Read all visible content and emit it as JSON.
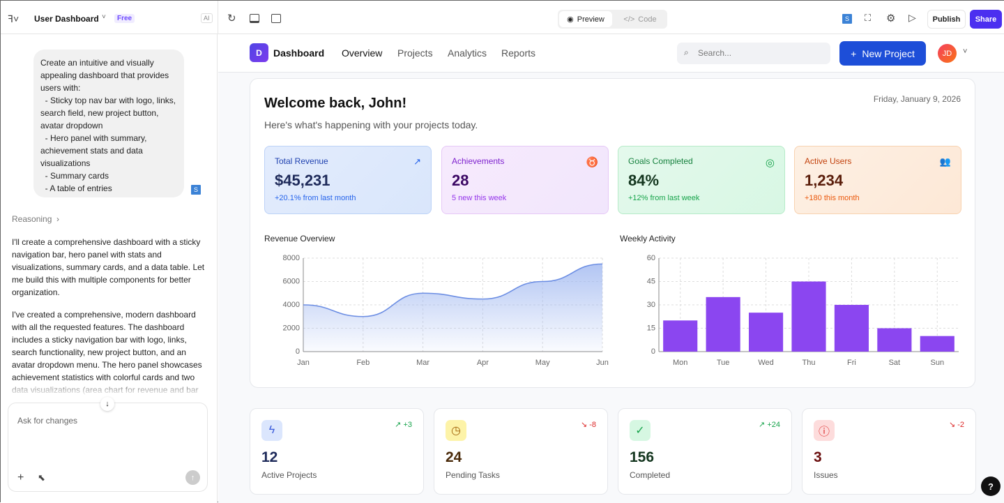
{
  "topbar": {
    "project_name": "User Dashboard",
    "plan_badge": "Free",
    "ai_badge": "AI",
    "preview_tab": "Preview",
    "code_tab": "Code",
    "user_badge": "S",
    "publish": "Publish",
    "share": "Share"
  },
  "chat": {
    "user_message": "Create an intuitive and visually appealing dashboard that provides users with:\n  - Sticky top nav bar with logo, links, search field, new project button, avatar dropdown\n  - Hero panel with summary, achievement stats and data visualizations\n  - Summary cards\n  - A table of entries",
    "user_avatar": "S",
    "reasoning_label": "Reasoning",
    "reply_1": "I'll create a comprehensive dashboard with a sticky navigation bar, hero panel with stats and visualizations, summary cards, and a data table. Let me build this with multiple components for better organization.",
    "reply_2": "I've created a comprehensive, modern dashboard with all the requested features. The dashboard includes a sticky navigation bar with logo, links, search functionality, new project button, and an avatar dropdown menu. The hero panel showcases achievement statistics with colorful cards and two data visualizations (area chart for revenue and bar",
    "input_placeholder": "Ask for changes"
  },
  "app": {
    "logo_letter": "D",
    "brand": "Dashboard",
    "nav": [
      "Overview",
      "Projects",
      "Analytics",
      "Reports"
    ],
    "search_placeholder": "Search...",
    "new_project": "New Project",
    "avatar": "JD",
    "welcome": "Welcome back, John!",
    "subtitle": "Here's what's happening with your projects today.",
    "date": "Friday, January 9, 2026",
    "stats": [
      {
        "title": "Total Revenue",
        "value": "$45,231",
        "sub": "+20.1% from last month",
        "icon": "trending-up-icon",
        "color": "#2563eb"
      },
      {
        "title": "Achievements",
        "value": "28",
        "sub": "5 new this week",
        "icon": "award-icon",
        "color": "#9333ea"
      },
      {
        "title": "Goals Completed",
        "value": "84%",
        "sub": "+12% from last week",
        "icon": "target-icon",
        "color": "#16a34a"
      },
      {
        "title": "Active Users",
        "value": "1,234",
        "sub": "+180 this month",
        "icon": "users-icon",
        "color": "#ea580c"
      }
    ],
    "summary": [
      {
        "value": "12",
        "label": "Active Projects",
        "delta": "+3",
        "trend": "up",
        "icon": "zap-icon"
      },
      {
        "value": "24",
        "label": "Pending Tasks",
        "delta": "-8",
        "trend": "down",
        "icon": "clock-icon"
      },
      {
        "value": "156",
        "label": "Completed",
        "delta": "+24",
        "trend": "up",
        "icon": "check-circle-icon"
      },
      {
        "value": "3",
        "label": "Issues",
        "delta": "-2",
        "trend": "down",
        "icon": "alert-circle-icon"
      }
    ]
  },
  "chart_data": [
    {
      "type": "area",
      "title": "Revenue Overview",
      "categories": [
        "Jan",
        "Feb",
        "Mar",
        "Apr",
        "May",
        "Jun"
      ],
      "values": [
        4000,
        3000,
        5000,
        4500,
        6000,
        7500
      ],
      "ylim": [
        0,
        8000
      ],
      "yticks": [
        0,
        2000,
        4000,
        6000,
        8000
      ],
      "grid": true,
      "color": "#6b8de3"
    },
    {
      "type": "bar",
      "title": "Weekly Activity",
      "categories": [
        "Mon",
        "Tue",
        "Wed",
        "Thu",
        "Fri",
        "Sat",
        "Sun"
      ],
      "values": [
        20,
        35,
        25,
        45,
        30,
        15,
        10
      ],
      "ylim": [
        0,
        60
      ],
      "yticks": [
        0,
        15,
        30,
        45,
        60
      ],
      "grid": true,
      "color": "#8b46f0"
    }
  ]
}
